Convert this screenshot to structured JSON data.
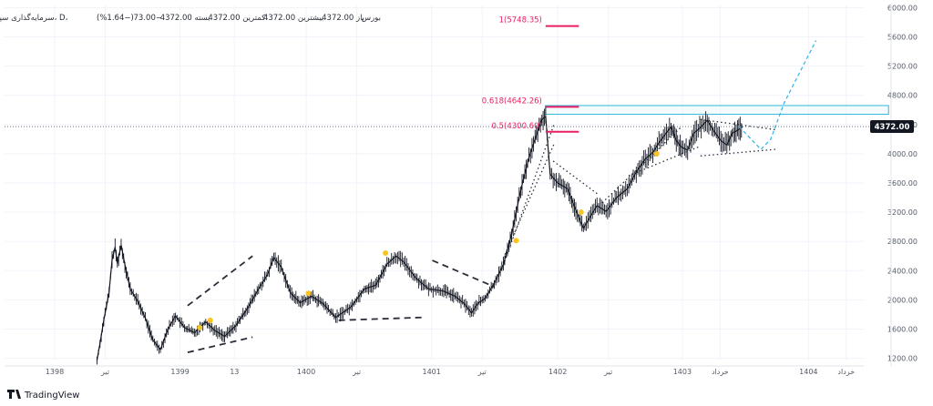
{
  "header": {
    "symbol_line": "سرمایه‌گذاری سپه، 1، D، بورس",
    "open_label": "باز",
    "open_value": "4372.00",
    "high_label": "بیشترین",
    "high_value": "4372.00",
    "low_label": "کمترین",
    "low_value": "4372.00",
    "close_label": "بسته",
    "close_value": "4372.00",
    "change_value": "−73.00",
    "change_pct": "(−1.64%)"
  },
  "footer": {
    "brand": "TradingView"
  },
  "colors": {
    "candle": "#131722",
    "fib_text": "#e91e63",
    "fib_line": "#e91e63",
    "zone_stroke": "#2fb8d6",
    "zone_fill": "#e8f7fb",
    "projection": "#3fb6e6",
    "marker": "#f7c325",
    "grid": "#f0f3fa",
    "axis_text": "#555b66",
    "price_badge_bg": "#131722",
    "price_badge_text": "#ffffff"
  },
  "chart_data": {
    "type": "candlestick",
    "title": "",
    "xlabel": "",
    "ylabel": "",
    "y_axis": {
      "ticks": [
        1200,
        1600,
        2000,
        2400,
        2800,
        3200,
        3600,
        4000,
        4400,
        4800,
        5200,
        5600,
        6000
      ],
      "tick_labels": [
        "1200.00",
        "1600.00",
        "2000.00",
        "2400.00",
        "2800.00",
        "3200.00",
        "3600.00",
        "4000.00",
        "4400.00",
        "4800.00",
        "5200.00",
        "5600.00",
        "6000.00"
      ],
      "ylim": [
        1170,
        6030
      ],
      "position": "right"
    },
    "x_axis": {
      "ticks": [
        {
          "label": "1398",
          "t": 0.0
        },
        {
          "label": "تیر",
          "t": 0.067
        },
        {
          "label": "1399",
          "t": 0.166
        },
        {
          "label": "13",
          "t": 0.238
        },
        {
          "label": "1400",
          "t": 0.333
        },
        {
          "label": "تیر",
          "t": 0.4
        },
        {
          "label": "1401",
          "t": 0.499
        },
        {
          "label": "تیر",
          "t": 0.566
        },
        {
          "label": "1402",
          "t": 0.666
        },
        {
          "label": "تیر",
          "t": 0.733
        },
        {
          "label": "1403",
          "t": 0.831
        },
        {
          "label": "خرداد",
          "t": 0.881
        },
        {
          "label": "1404",
          "t": 0.998
        },
        {
          "label": "خرداد",
          "t": 1.048
        }
      ]
    },
    "last_price": {
      "value": 4372,
      "label": "4372.00"
    },
    "price_path": [
      [
        0.056,
        1170
      ],
      [
        0.06,
        1400
      ],
      [
        0.065,
        1720
      ],
      [
        0.072,
        2100
      ],
      [
        0.076,
        2550
      ],
      [
        0.08,
        2720
      ],
      [
        0.083,
        2500
      ],
      [
        0.088,
        2750
      ],
      [
        0.093,
        2480
      ],
      [
        0.1,
        2150
      ],
      [
        0.11,
        1980
      ],
      [
        0.12,
        1750
      ],
      [
        0.13,
        1450
      ],
      [
        0.14,
        1320
      ],
      [
        0.15,
        1600
      ],
      [
        0.16,
        1780
      ],
      [
        0.172,
        1620
      ],
      [
        0.185,
        1550
      ],
      [
        0.2,
        1700
      ],
      [
        0.212,
        1580
      ],
      [
        0.225,
        1500
      ],
      [
        0.24,
        1650
      ],
      [
        0.255,
        1880
      ],
      [
        0.27,
        2150
      ],
      [
        0.282,
        2350
      ],
      [
        0.29,
        2580
      ],
      [
        0.3,
        2450
      ],
      [
        0.312,
        2100
      ],
      [
        0.325,
        1960
      ],
      [
        0.34,
        2050
      ],
      [
        0.355,
        1950
      ],
      [
        0.372,
        1760
      ],
      [
        0.392,
        1900
      ],
      [
        0.41,
        2150
      ],
      [
        0.425,
        2200
      ],
      [
        0.44,
        2490
      ],
      [
        0.452,
        2600
      ],
      [
        0.462,
        2520
      ],
      [
        0.478,
        2300
      ],
      [
        0.495,
        2150
      ],
      [
        0.515,
        2120
      ],
      [
        0.53,
        2050
      ],
      [
        0.542,
        1950
      ],
      [
        0.552,
        1820
      ],
      [
        0.56,
        1950
      ],
      [
        0.57,
        2020
      ],
      [
        0.582,
        2230
      ],
      [
        0.594,
        2480
      ],
      [
        0.605,
        2900
      ],
      [
        0.617,
        3500
      ],
      [
        0.628,
        3950
      ],
      [
        0.636,
        4200
      ],
      [
        0.645,
        4470
      ],
      [
        0.65,
        4510
      ],
      [
        0.656,
        3720
      ],
      [
        0.666,
        3600
      ],
      [
        0.679,
        3520
      ],
      [
        0.69,
        3230
      ],
      [
        0.7,
        2980
      ],
      [
        0.708,
        3120
      ],
      [
        0.718,
        3290
      ],
      [
        0.73,
        3210
      ],
      [
        0.744,
        3400
      ],
      [
        0.758,
        3520
      ],
      [
        0.77,
        3750
      ],
      [
        0.782,
        3930
      ],
      [
        0.792,
        4020
      ],
      [
        0.8,
        4150
      ],
      [
        0.808,
        4260
      ],
      [
        0.816,
        4370
      ],
      [
        0.823,
        4180
      ],
      [
        0.83,
        4090
      ],
      [
        0.838,
        4050
      ],
      [
        0.846,
        4280
      ],
      [
        0.854,
        4350
      ],
      [
        0.864,
        4460
      ],
      [
        0.872,
        4320
      ],
      [
        0.882,
        4180
      ],
      [
        0.89,
        4120
      ],
      [
        0.897,
        4280
      ],
      [
        0.904,
        4320
      ],
      [
        0.911,
        4372
      ]
    ],
    "trendlines": [
      {
        "style": "dashed",
        "points": [
          [
            0.176,
            1920
          ],
          [
            0.262,
            2600
          ]
        ]
      },
      {
        "style": "dashed",
        "points": [
          [
            0.176,
            1280
          ],
          [
            0.262,
            1490
          ]
        ]
      },
      {
        "style": "dashed",
        "points": [
          [
            0.376,
            1720
          ],
          [
            0.488,
            1760
          ]
        ]
      },
      {
        "style": "dashed",
        "points": [
          [
            0.5,
            2540
          ],
          [
            0.582,
            2180
          ]
        ]
      },
      {
        "style": "dotted",
        "points": [
          [
            0.592,
            2420
          ],
          [
            0.661,
            4400
          ]
        ]
      },
      {
        "style": "dotted",
        "points": [
          [
            0.596,
            2620
          ],
          [
            0.661,
            4130
          ]
        ]
      },
      {
        "style": "dotted",
        "points": [
          [
            0.66,
            3900
          ],
          [
            0.72,
            3440
          ]
        ]
      },
      {
        "style": "dotted",
        "points": [
          [
            0.725,
            3330
          ],
          [
            0.83,
            4370
          ]
        ]
      },
      {
        "style": "dotted",
        "points": [
          [
            0.76,
            3700
          ],
          [
            0.854,
            4100
          ]
        ]
      },
      {
        "style": "dotted",
        "points": [
          [
            0.855,
            4470
          ],
          [
            0.954,
            4330
          ]
        ]
      },
      {
        "style": "dotted",
        "points": [
          [
            0.855,
            3970
          ],
          [
            0.954,
            4060
          ]
        ]
      }
    ],
    "projection": [
      [
        0.906,
        4372
      ],
      [
        0.935,
        4060
      ],
      [
        0.948,
        4200
      ],
      [
        0.966,
        4700
      ],
      [
        1.008,
        5550
      ]
    ],
    "zone": {
      "t_start": 0.65,
      "t_end": 1.104,
      "y_low": 4540,
      "y_high": 4660
    },
    "fib_levels": [
      {
        "label": "0.618(4642.26)",
        "value": 4642.26,
        "segment": [
          0.65,
          0.694
        ]
      },
      {
        "label": "0.5(4300.60)",
        "value": 4300.6,
        "segment": [
          0.65,
          0.694
        ]
      },
      {
        "label": "1(5748.35)",
        "value": 5748.35,
        "segment": [
          0.65,
          0.694
        ]
      }
    ],
    "markers": [
      {
        "t": 0.192,
        "y": 1620
      },
      {
        "t": 0.206,
        "y": 1720
      },
      {
        "t": 0.336,
        "y": 2090
      },
      {
        "t": 0.438,
        "y": 2640
      },
      {
        "t": 0.611,
        "y": 2810
      },
      {
        "t": 0.697,
        "y": 3200
      },
      {
        "t": 0.797,
        "y": 4000
      }
    ]
  }
}
